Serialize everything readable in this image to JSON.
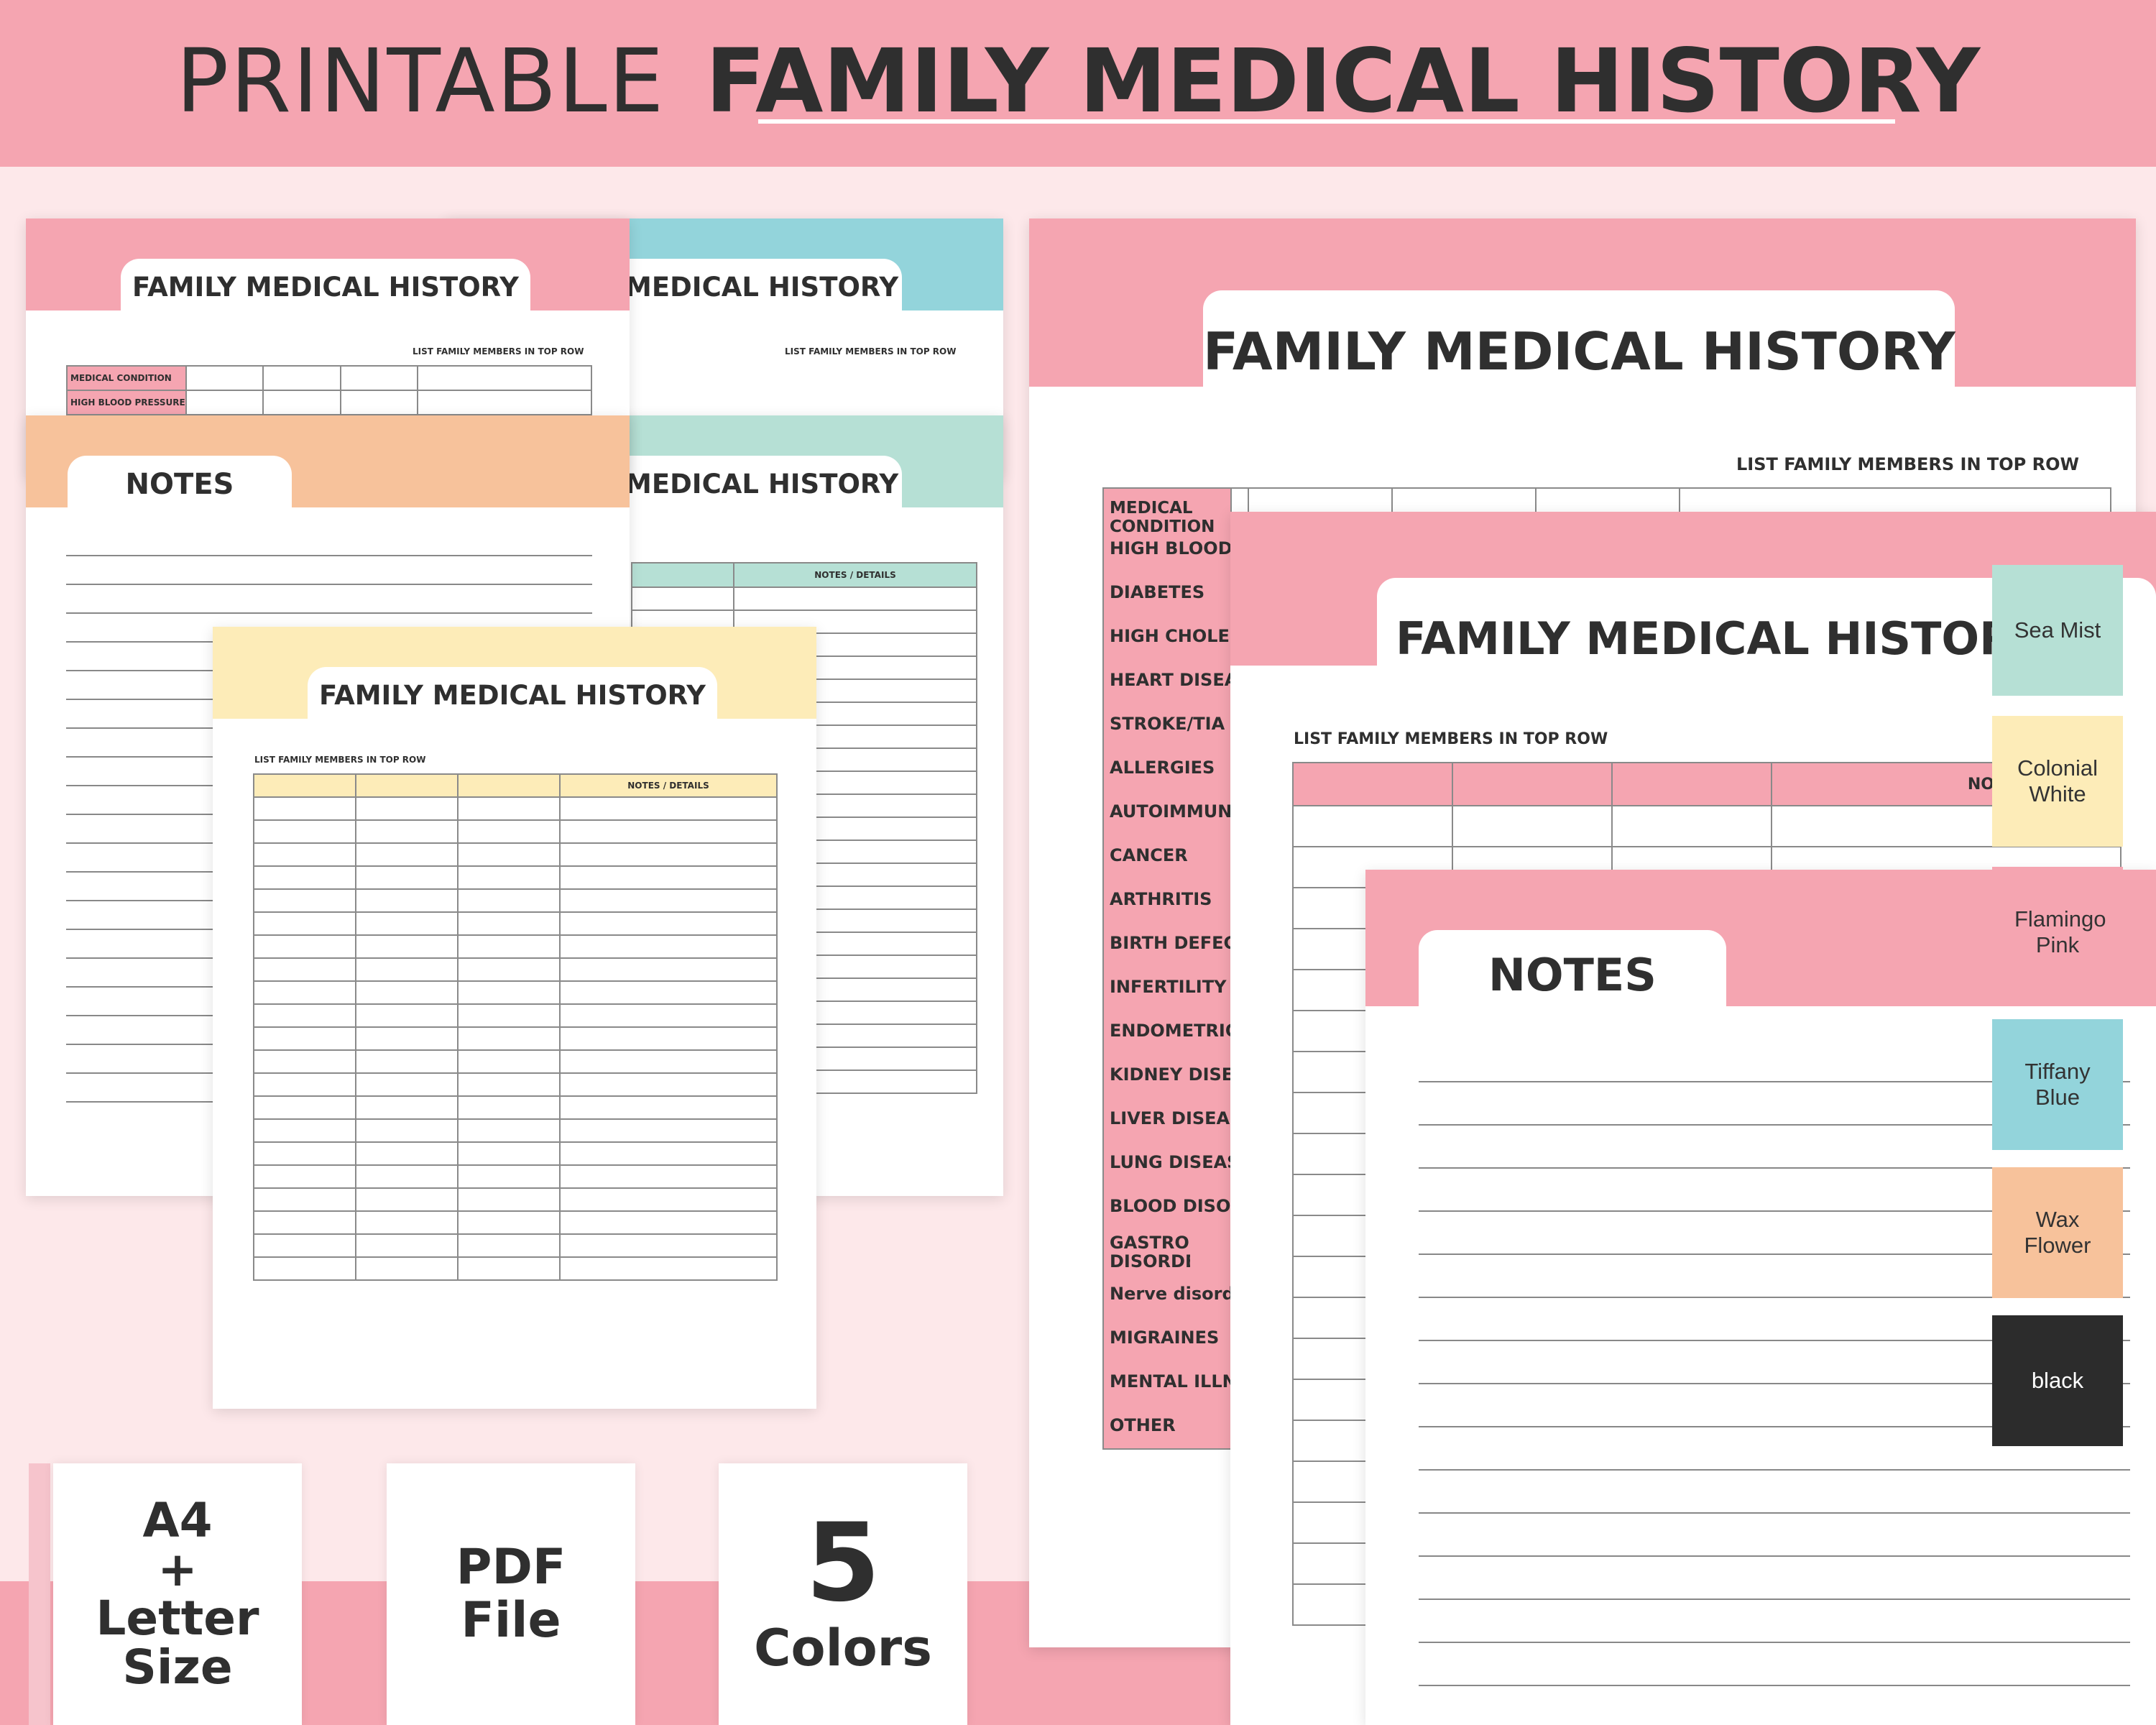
{
  "header": {
    "title_light": "PRINTABLE",
    "title_bold": "FAMILY MEDICAL HISTORY"
  },
  "colors": {
    "flamingo_pink": "#f5a5b1",
    "tiffany_blue": "#93d4db",
    "sea_mist": "#b6e0d5",
    "colonial_white": "#fdecb8",
    "wax_flower": "#f7c29b",
    "black": "#2c2c2c"
  },
  "pages": {
    "sheet_title": "FAMILY MEDICAL HISTORY",
    "sheet_title_partial": "MEDICAL HISTORY",
    "notes_title": "NOTES",
    "subtitle": "LIST FAMILY MEMBERS IN TOP ROW",
    "notes_details": "NOTES / DETAILS",
    "notes_details_partial": "NOTES / DETAIL",
    "small_rows": [
      "MEDICAL CONDITION",
      "HIGH BLOOD PRESSURE"
    ],
    "conditions_header": "MEDICAL CONDITION",
    "conditions": [
      "HIGH BLOOD",
      "DIABETES",
      "HIGH CHOLES",
      "HEART DISEAS",
      "STROKE/TIA",
      "ALLERGIES",
      "AUTOIMMUNI",
      "CANCER",
      "ARTHRITIS",
      "BIRTH DEFECT",
      "INFERTILITY",
      "ENDOMETRIO",
      "KIDNEY DISEA",
      "LIVER DISEAS",
      "LUNG DISEAS",
      "BLOOD DISOR",
      "GASTROINTES DISORDER",
      "Nerve disord",
      "MIGRAINES",
      "MENTAL ILLNE",
      "OTHER"
    ]
  },
  "swatches": [
    {
      "label": "Sea Mist",
      "color": "#b6e0d5"
    },
    {
      "label": "Colonial White",
      "color": "#fdecb8"
    },
    {
      "label": "Flamingo Pink",
      "color": "#f5a5b1"
    },
    {
      "label": "Tiffany Blue",
      "color": "#93d4db"
    },
    {
      "label": "Wax Flower",
      "color": "#f7c29b"
    },
    {
      "label": "black",
      "color": "#2c2c2c"
    }
  ],
  "features": {
    "size": {
      "line1": "A4",
      "line2": "+",
      "line3": "Letter",
      "line4": "Size"
    },
    "file": {
      "line1": "PDF",
      "line2": "File"
    },
    "colors": {
      "number": "5",
      "label": "Colors"
    }
  }
}
